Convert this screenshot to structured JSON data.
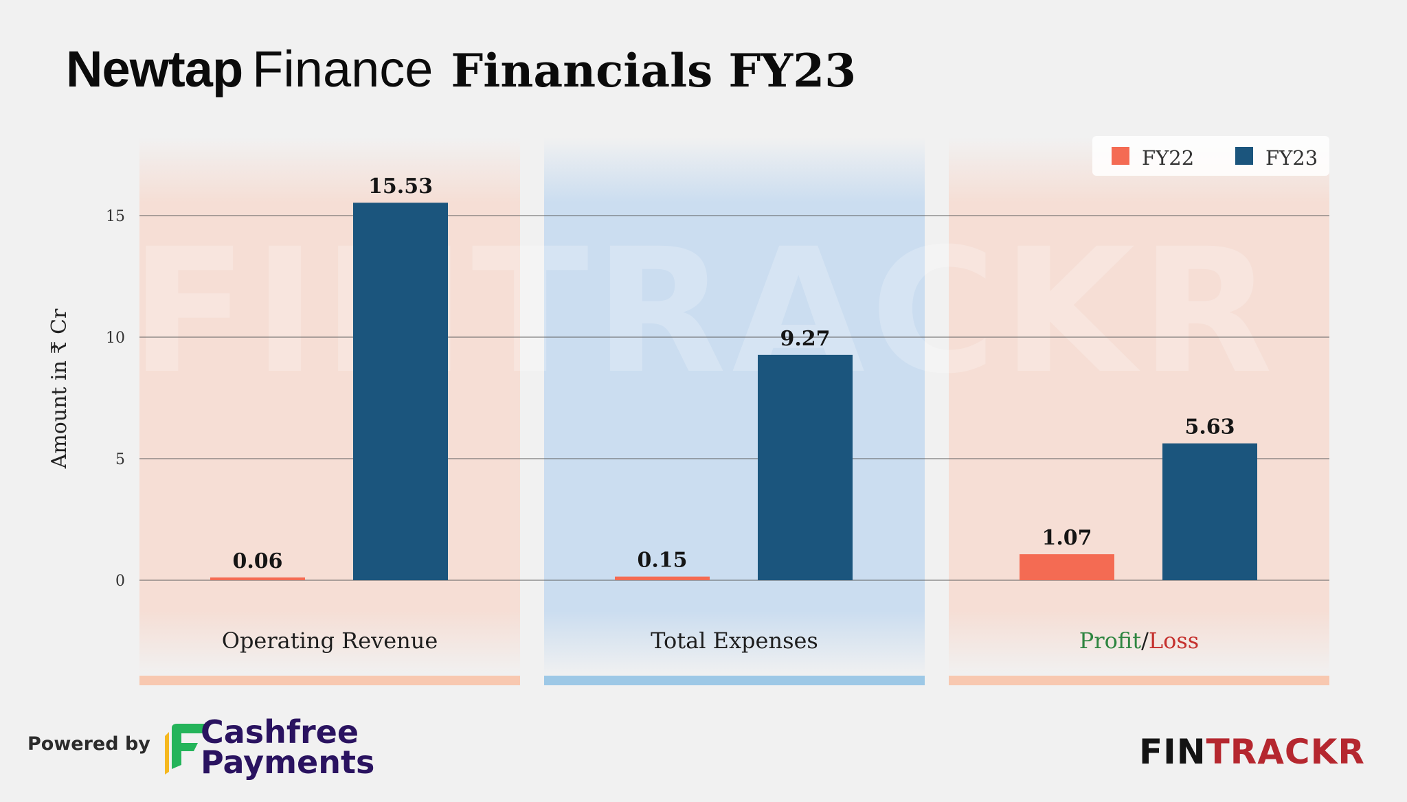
{
  "title": {
    "brand_bold": "Newtap",
    "brand_regular": "Finance",
    "rest": "Financials FY23"
  },
  "watermark": "FINTRACKR",
  "footer": {
    "powered_by": "Powered by",
    "sponsor_line1": "Cashfree",
    "sponsor_line2": "Payments",
    "logo_part1": "FIN",
    "logo_part2": "TRACKR"
  },
  "colors": {
    "fy22": "#f46b53",
    "fy23": "#1b557d",
    "profit": "#2e8540",
    "loss": "#c5302d",
    "panel_warm": "#f7d8cc",
    "panel_cool": "#c7dbf0",
    "strip_warm": "#f8c8b0",
    "strip_cool": "#9dc8e6"
  },
  "chart_data": {
    "type": "bar",
    "title": "Newtap Finance Financials FY23",
    "ylabel": "Amount in ₹ Cr",
    "xlabel": "",
    "ylim": [
      0,
      15.5
    ],
    "yticks": [
      0,
      5,
      10,
      15
    ],
    "grid": true,
    "legend_position": "top-right",
    "categories": [
      "Operating Revenue",
      "Total Expenses",
      "Profit/Loss"
    ],
    "category_label_parts": [
      [
        {
          "text": "Operating Revenue",
          "tone": "normal"
        }
      ],
      [
        {
          "text": "Total Expenses",
          "tone": "normal"
        }
      ],
      [
        {
          "text": "Profit",
          "tone": "profit"
        },
        {
          "text": "/",
          "tone": "normal"
        },
        {
          "text": "Loss",
          "tone": "loss"
        }
      ]
    ],
    "series": [
      {
        "name": "FY22",
        "color": "#f46b53",
        "values": [
          0.06,
          0.15,
          1.07
        ]
      },
      {
        "name": "FY23",
        "color": "#1b557d",
        "values": [
          15.53,
          9.27,
          5.63
        ]
      }
    ]
  }
}
